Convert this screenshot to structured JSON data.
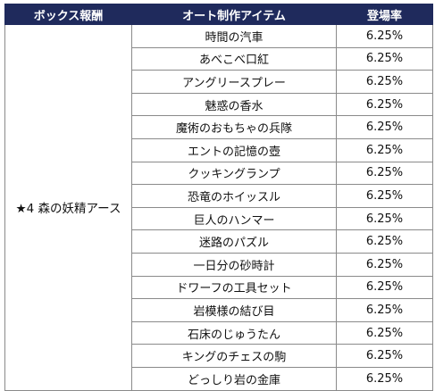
{
  "headers": {
    "reward": "ボックス報酬",
    "item": "オート制作アイテム",
    "rate": "登場率"
  },
  "colors": {
    "header_bg": "#1f2a5c",
    "header_text": "#ffffff",
    "border": "#8a8a8a"
  },
  "reward": "★4 森の妖精アース",
  "rows": [
    {
      "item": "時間の汽車",
      "rate": "6.25%"
    },
    {
      "item": "あべこべ口紅",
      "rate": "6.25%"
    },
    {
      "item": "アングリースプレー",
      "rate": "6.25%"
    },
    {
      "item": "魅惑の香水",
      "rate": "6.25%"
    },
    {
      "item": "魔術のおもちゃの兵隊",
      "rate": "6.25%"
    },
    {
      "item": "エントの記憶の壺",
      "rate": "6.25%"
    },
    {
      "item": "クッキングランプ",
      "rate": "6.25%"
    },
    {
      "item": "恐竜のホイッスル",
      "rate": "6.25%"
    },
    {
      "item": "巨人のハンマー",
      "rate": "6.25%"
    },
    {
      "item": "迷路のパズル",
      "rate": "6.25%"
    },
    {
      "item": "一日分の砂時計",
      "rate": "6.25%"
    },
    {
      "item": "ドワーフの工具セット",
      "rate": "6.25%"
    },
    {
      "item": "岩模様の結び目",
      "rate": "6.25%"
    },
    {
      "item": "石床のじゅうたん",
      "rate": "6.25%"
    },
    {
      "item": "キングのチェスの駒",
      "rate": "6.25%"
    },
    {
      "item": "どっしり岩の金庫",
      "rate": "6.25%"
    }
  ]
}
